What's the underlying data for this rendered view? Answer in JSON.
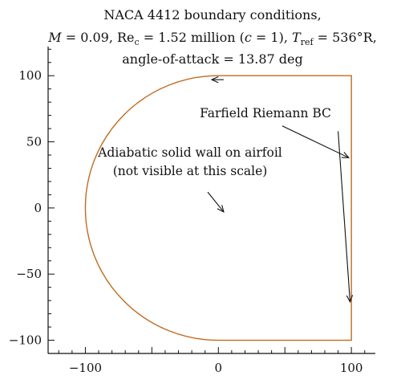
{
  "title": {
    "line1": "NACA 4412 boundary conditions,",
    "line2": {
      "m_var": "M",
      "m_value": " = 0.09, Re",
      "re_sub": "c",
      "re_value": " = 1.52 million (",
      "c_var": "c",
      "c_value": " = 1), ",
      "t_var": "T",
      "t_sub": "ref",
      "t_value": " = 536°R,"
    },
    "line3": "angle-of-attack = 13.87 deg"
  },
  "annotations": {
    "farfield": "Farfield Riemann BC",
    "wall_line1": "Adiabatic solid wall on airfoil",
    "wall_line2": "(not visible at this scale)"
  },
  "chart_data": {
    "type": "diagram",
    "xlim": [
      -128,
      118
    ],
    "ylim": [
      -110,
      122
    ],
    "x_ticks": [
      -100,
      0,
      100
    ],
    "y_ticks": [
      100,
      50,
      0,
      -50,
      -100
    ],
    "x_tick_labels": [
      "−100",
      "0",
      "100"
    ],
    "y_tick_labels": [
      "100",
      "50",
      "0",
      "−50",
      "−100"
    ],
    "boundary": {
      "semicircle": {
        "center": [
          0,
          0
        ],
        "radius": 100,
        "from": "top",
        "to": "bottom",
        "side": "left"
      },
      "rectangle_right_x": 100,
      "rectangle_top_y": 100,
      "rectangle_bottom_y": -100
    },
    "arrows": [
      {
        "from": [
          4,
          97
        ],
        "to": [
          -5,
          97
        ]
      },
      {
        "from": [
          48,
          62
        ],
        "to": [
          98,
          38
        ]
      },
      {
        "from": [
          90,
          58
        ],
        "to": [
          99,
          -71
        ]
      },
      {
        "from": [
          -8,
          12
        ],
        "to": [
          4,
          -3
        ]
      }
    ],
    "colors": {
      "boundary": "#c06b20",
      "axis": "#111111"
    }
  }
}
